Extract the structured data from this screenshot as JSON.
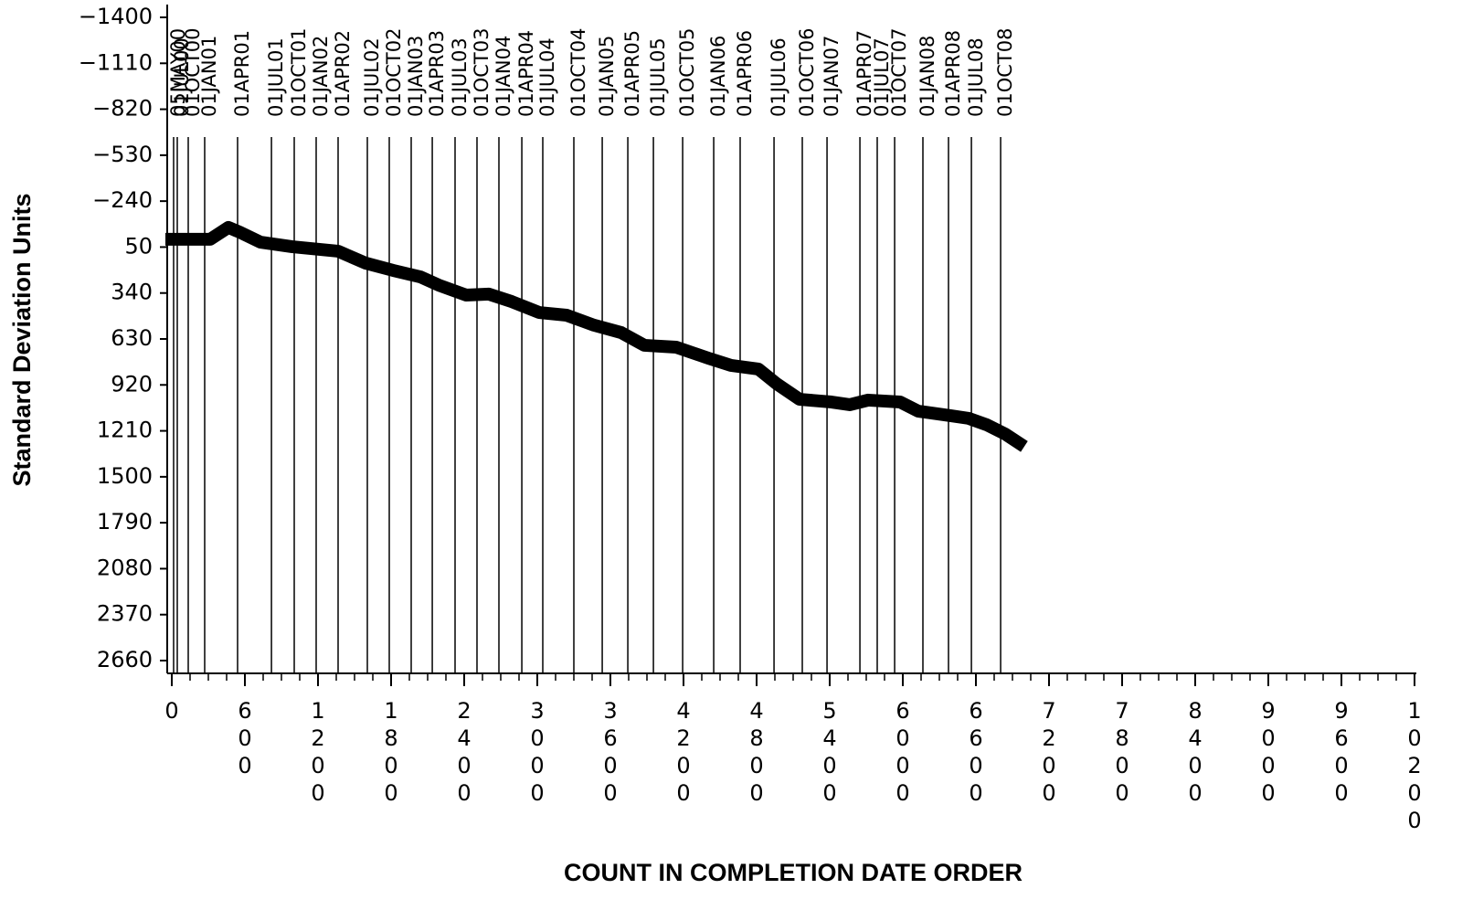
{
  "chart_data": {
    "type": "line",
    "y_label": "Standard Deviation Units",
    "x_label": "COUNT IN COMPLETION DATE ORDER",
    "xlim": [
      0,
      10200
    ],
    "xticks": [
      0,
      600,
      1200,
      1800,
      2400,
      3000,
      3600,
      4200,
      4800,
      5400,
      6000,
      6600,
      7200,
      7800,
      8400,
      9000,
      9600,
      10200
    ],
    "ylim": [
      2660,
      -1400
    ],
    "yticks": [
      {
        "value": -1400,
        "label": "−1400"
      },
      {
        "value": -1110,
        "label": "−1110"
      },
      {
        "value": -820,
        "label": "−820"
      },
      {
        "value": -530,
        "label": "−530"
      },
      {
        "value": -240,
        "label": "−240"
      },
      50,
      340,
      630,
      920,
      1210,
      1500,
      1790,
      2080,
      2370,
      2660
    ],
    "reference_lines": {
      "labels": [
        "05MAY00",
        "01JUL00",
        "01OCT00",
        "01JAN01",
        "01APR01",
        "01JUL01",
        "01OCT01",
        "01JAN02",
        "01APR02",
        "01JUL02",
        "01OCT02",
        "01JAN03",
        "01APR03",
        "01JUL03",
        "01OCT03",
        "01JAN04",
        "01APR04",
        "01JUL04",
        "01OCT04",
        "01JAN05",
        "01APR05",
        "01JUL05",
        "01OCT05",
        "01JAN06",
        "01APR06",
        "01JUL06",
        "01OCT06",
        "01JAN07",
        "01APR07",
        "01JUL07",
        "01OCT07",
        "01JAN08",
        "01APR08",
        "01JUL08",
        "01OCT08"
      ],
      "x": [
        15,
        45,
        135,
        270,
        540,
        818,
        1005,
        1185,
        1365,
        1605,
        1785,
        1965,
        2138,
        2325,
        2505,
        2685,
        2873,
        3045,
        3300,
        3533,
        3743,
        3953,
        4193,
        4448,
        4665,
        4943,
        5175,
        5378,
        5648,
        5790,
        5933,
        6165,
        6375,
        6563,
        6803
      ]
    },
    "series": [
      {
        "color": "#000000",
        "x": [
          0,
          165,
          315,
          465,
          555,
          728,
          990,
          1365,
          1590,
          1815,
          2040,
          2190,
          2415,
          2603,
          2790,
          3015,
          3240,
          3465,
          3690,
          3878,
          4140,
          4403,
          4590,
          4815,
          4965,
          5153,
          5415,
          5565,
          5715,
          5978,
          6128,
          6390,
          6540,
          6690,
          6840,
          6953
        ],
        "values": [
          1,
          1,
          1,
          -74,
          -45,
          19,
          48,
          76,
          151,
          197,
          238,
          290,
          353,
          347,
          394,
          463,
          480,
          543,
          590,
          670,
          682,
          751,
          797,
          820,
          913,
          1011,
          1028,
          1045,
          1016,
          1028,
          1086,
          1114,
          1131,
          1172,
          1230,
          1287
        ]
      }
    ]
  }
}
